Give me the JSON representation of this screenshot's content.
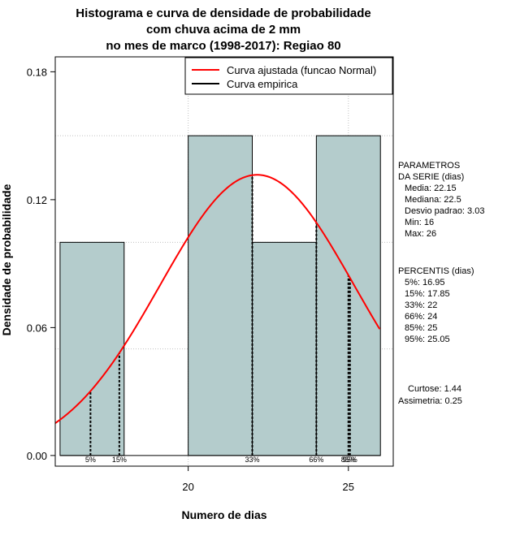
{
  "chart_data": {
    "type": "bar",
    "title_lines": [
      "Histograma e curva de densidade de probabilidade",
      "com chuva acima de 2 mm",
      "no mes de marco (1998-2017): Regiao 80"
    ],
    "xlabel": "Numero de dias",
    "ylabel": "Densidade de probabilidade",
    "xlim": [
      15.85,
      26.4
    ],
    "ylim": [
      -0.005,
      0.187
    ],
    "xticks": [
      20,
      25
    ],
    "yticks": [
      0.0,
      0.06,
      0.12,
      0.18
    ],
    "ytick_labels": [
      "0.00",
      "0.06",
      "0.12",
      "0.18"
    ],
    "grid": true,
    "bins": [
      {
        "start": 16,
        "end": 18,
        "density": 0.1
      },
      {
        "start": 18,
        "end": 20,
        "density": 0.0
      },
      {
        "start": 20,
        "end": 22,
        "density": 0.15
      },
      {
        "start": 22,
        "end": 24,
        "density": 0.1
      },
      {
        "start": 24,
        "end": 26,
        "density": 0.15
      }
    ],
    "bar_color": "#b4cccc",
    "fitted_curve": {
      "name": "Curva ajustada (funcao Normal)",
      "distribution": "normal",
      "mean": 22.15,
      "sd": 3.03,
      "color": "#ff0000"
    },
    "empirical_curve": {
      "name": "Curva empirica",
      "color": "#000000"
    },
    "legend_position": "top-right",
    "percentiles": [
      {
        "label": "5%",
        "value": 16.95
      },
      {
        "label": "15%",
        "value": 17.85
      },
      {
        "label": "33%",
        "value": 22
      },
      {
        "label": "66%",
        "value": 24
      },
      {
        "label": "85%",
        "value": 25
      },
      {
        "label": "95%",
        "value": 25.05
      }
    ]
  },
  "side_panel": {
    "params_title_1": "PARAMETROS",
    "params_title_2": "DA SERIE (dias)",
    "media": "Media: 22.15",
    "mediana": "Mediana: 22.5",
    "desvio": "Desvio padrao: 3.03",
    "min": "Min: 16",
    "max": "Max: 26",
    "percentis_title": "PERCENTIS (dias)",
    "p5": "5%: 16.95",
    "p15": "15%: 17.85",
    "p33": "33%: 22",
    "p66": "66%: 24",
    "p85": "85%: 25",
    "p95": "95%: 25.05",
    "curtose": "Curtose: 1.44",
    "assimetria": "Assimetria: 0.25"
  }
}
